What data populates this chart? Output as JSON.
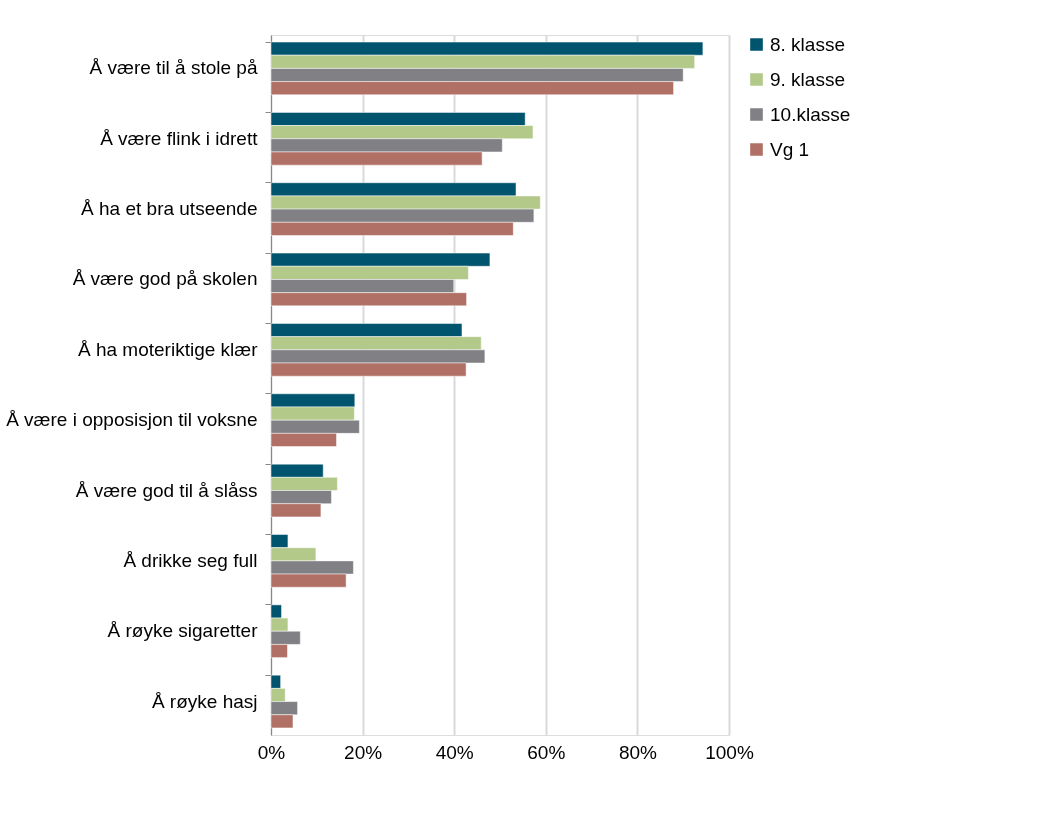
{
  "chart_data": {
    "type": "bar",
    "orientation": "horizontal",
    "categories": [
      "Å være til å stole på",
      "Å være flink i idrett",
      "Å ha et bra utseende",
      "Å være god på skolen",
      "Å ha moteriktige klær",
      "Å være i opposisjon til voksne",
      "Å være god til å slåss",
      "Å drikke seg full",
      "Å røyke sigaretter",
      "Å røyke hasj"
    ],
    "series": [
      {
        "name": "8. klasse",
        "color": "#00546e",
        "values": [
          94.3,
          55.5,
          53.5,
          47.8,
          41.7,
          18.3,
          11.4,
          3.7,
          2.3,
          2.1
        ]
      },
      {
        "name": "9. klasse",
        "color": "#b3c98a",
        "values": [
          92.5,
          57.2,
          58.8,
          43.1,
          45.9,
          18.2,
          14.5,
          9.8,
          3.7,
          3.1
        ]
      },
      {
        "name": "10.klasse",
        "color": "#808085",
        "values": [
          90.0,
          50.5,
          57.4,
          39.9,
          46.7,
          19.3,
          13.2,
          18.0,
          6.4,
          5.8
        ]
      },
      {
        "name": "Vg 1",
        "color": "#b07066",
        "values": [
          87.9,
          46.1,
          52.9,
          42.7,
          42.6,
          14.3,
          10.9,
          16.4,
          3.6,
          4.8
        ]
      }
    ],
    "xlim": [
      0,
      100
    ],
    "xticks": [
      {
        "value": 0,
        "label": "0%"
      },
      {
        "value": 20,
        "label": "20%"
      },
      {
        "value": 40,
        "label": "40%"
      },
      {
        "value": 60,
        "label": "60%"
      },
      {
        "value": 80,
        "label": "80%"
      },
      {
        "value": 100,
        "label": "100%"
      }
    ],
    "grid": "x",
    "legend": "right"
  }
}
